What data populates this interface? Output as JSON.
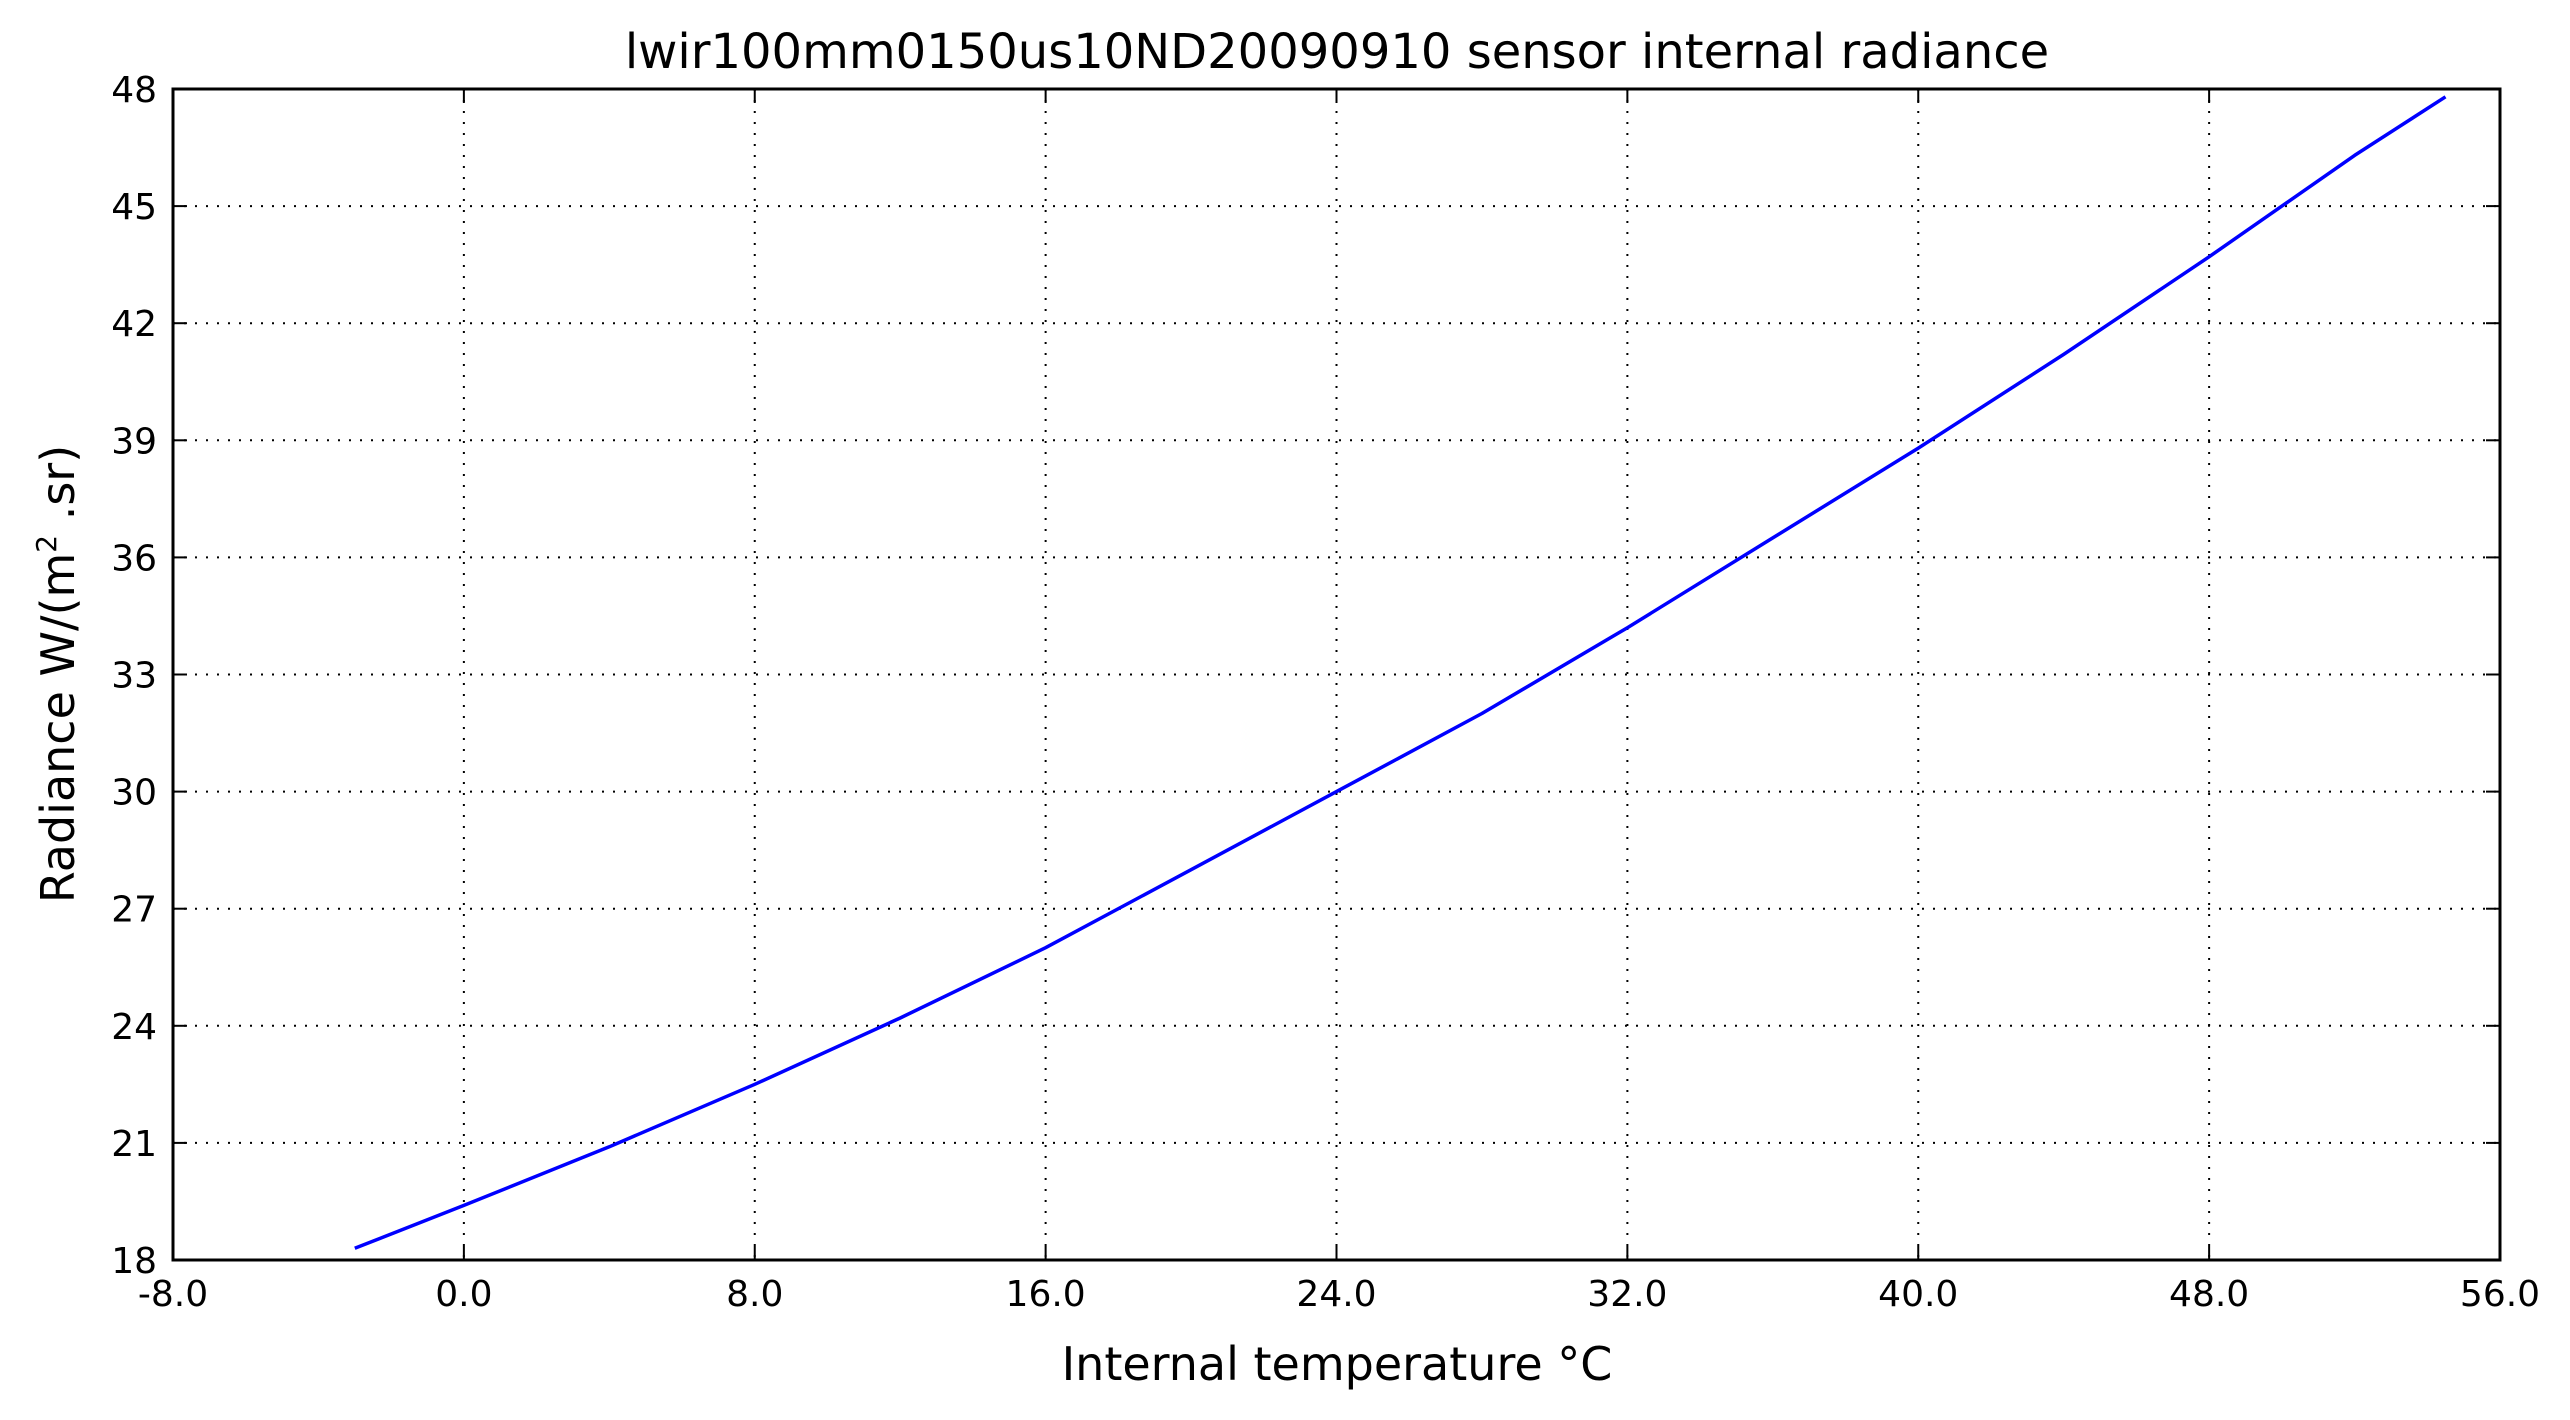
{
  "chart_data": {
    "type": "line",
    "title": "lwir100mm0150us10ND20090910 sensor internal radiance",
    "xlabel": "Internal temperature °C",
    "ylabel_main": "Radiance W/(m",
    "ylabel_sup": "2",
    "ylabel_tail": " .sr)",
    "xlim": [
      -8.0,
      56.0
    ],
    "ylim": [
      18,
      48
    ],
    "x_ticks": [
      "-8.0",
      "0.0",
      "8.0",
      "16.0",
      "24.0",
      "32.0",
      "40.0",
      "48.0",
      "56.0"
    ],
    "y_ticks": [
      "18",
      "21",
      "24",
      "27",
      "30",
      "33",
      "36",
      "39",
      "42",
      "45",
      "48"
    ],
    "grid": true,
    "line_color": "#0000ff",
    "series": [
      {
        "x": [
          -3,
          0,
          4,
          8,
          12,
          16,
          20,
          24,
          28,
          32,
          36,
          40,
          44,
          48,
          52,
          54.5
        ],
        "y": [
          18.3,
          19.4,
          20.9,
          22.5,
          24.2,
          26.0,
          28.0,
          30.0,
          32.0,
          34.2,
          36.5,
          38.8,
          41.2,
          43.7,
          46.3,
          47.8
        ]
      }
    ]
  }
}
